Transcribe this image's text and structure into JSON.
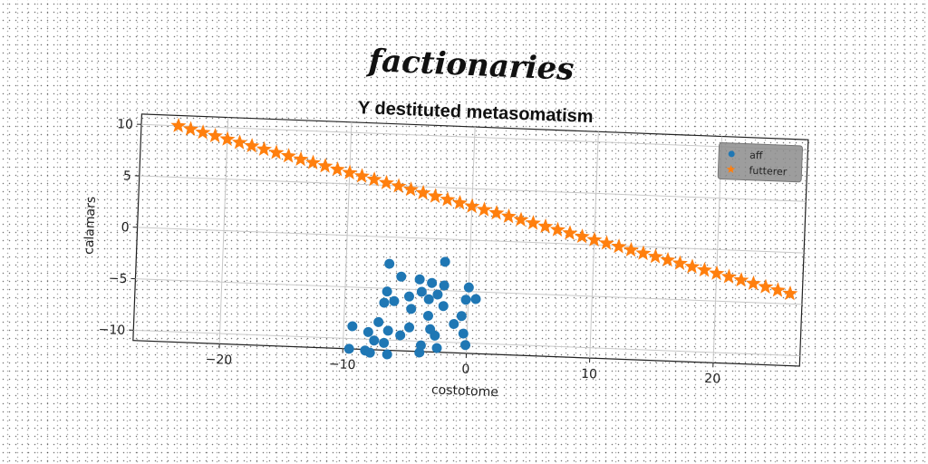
{
  "figure": {
    "suptitle": "factionaries"
  },
  "chart_data": {
    "type": "scatter",
    "title": "Y destituted metasomatism",
    "xlabel": "costotome",
    "ylabel": "calamars",
    "xlim": [
      -27,
      27
    ],
    "ylim": [
      -11,
      11
    ],
    "xticks": [
      -20,
      -10,
      0,
      10,
      20
    ],
    "yticks": [
      -10,
      -5,
      0,
      5,
      10
    ],
    "xtick_labels": [
      "−20",
      "−10",
      "0",
      "10",
      "20"
    ],
    "ytick_labels": [
      "−10",
      "−5",
      "0",
      "5",
      "10"
    ],
    "grid": true,
    "legend_position": "top-right",
    "series": [
      {
        "name": "aff",
        "marker": "circle",
        "color": "#1f77b4",
        "points": [
          [
            -6.5,
            -2.6
          ],
          [
            -2,
            -2.2
          ],
          [
            -5.5,
            -3.8
          ],
          [
            -4,
            -4
          ],
          [
            -3,
            -4.3
          ],
          [
            -2,
            -4.5
          ],
          [
            0,
            -4.6
          ],
          [
            -6.6,
            -5.3
          ],
          [
            -3.8,
            -5.2
          ],
          [
            -2.5,
            -5.4
          ],
          [
            -4.8,
            -5.7
          ],
          [
            -3.2,
            -5.9
          ],
          [
            -0.2,
            -5.8
          ],
          [
            0.6,
            -5.7
          ],
          [
            -6.8,
            -6.4
          ],
          [
            -6,
            -6.2
          ],
          [
            -2,
            -6.5
          ],
          [
            -0.5,
            -7.4
          ],
          [
            -3.2,
            -7.5
          ],
          [
            -1.1,
            -8.2
          ],
          [
            -7.2,
            -8.3
          ],
          [
            -4.7,
            -8.7
          ],
          [
            -8,
            -9.3
          ],
          [
            -6.4,
            -9.1
          ],
          [
            -5.4,
            -9.5
          ],
          [
            -2.6,
            -9.4
          ],
          [
            -0.3,
            -9.1
          ],
          [
            -9.3,
            -8.8
          ],
          [
            -7.5,
            -10.1
          ],
          [
            -6.7,
            -10.3
          ],
          [
            -3.7,
            -10.4
          ],
          [
            -2.4,
            -10.6
          ],
          [
            -0.1,
            -10.2
          ],
          [
            -9.5,
            -11
          ],
          [
            -8.2,
            -11.1
          ],
          [
            -7.8,
            -11.3
          ],
          [
            -6.4,
            -11.4
          ],
          [
            -3.8,
            -11.1
          ],
          [
            -4.6,
            -6.9
          ],
          [
            -3,
            -8.8
          ]
        ]
      },
      {
        "name": "futterer",
        "marker": "star",
        "color": "#ff7f0e",
        "line": {
          "x_start": -24,
          "x_end": 26,
          "y_start": 10,
          "y_end": -4,
          "n": 51
        }
      }
    ]
  }
}
